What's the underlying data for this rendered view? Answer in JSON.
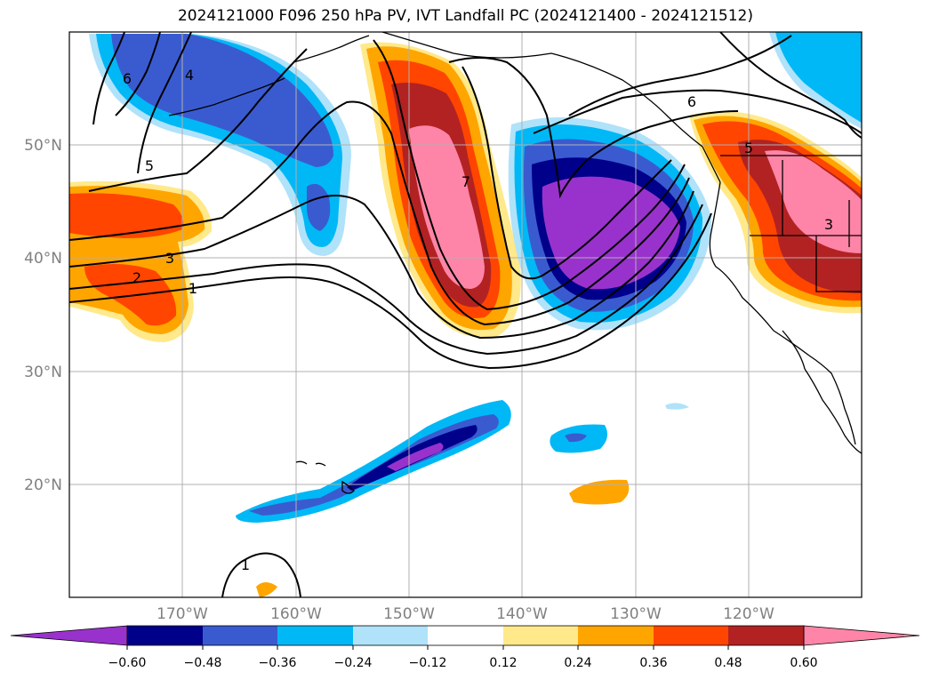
{
  "title": "2024121000 F096 250 hPa PV, IVT Landfall PC (2024121400 - 2024121512)",
  "map": {
    "lon_range": [
      -180,
      -110
    ],
    "lat_range": [
      10,
      60
    ],
    "lat_labels": [
      "50°N",
      "40°N",
      "30°N",
      "20°N"
    ],
    "lon_labels": [
      "170°W",
      "160°W",
      "150°W",
      "140°W",
      "130°W",
      "120°W"
    ],
    "grid": true,
    "contour_labels": [
      "6",
      "4",
      "5",
      "3",
      "2",
      "1",
      "7",
      "6",
      "5",
      "3",
      "1"
    ]
  },
  "colorbar": {
    "tick_labels": [
      "−0.60",
      "−0.48",
      "−0.36",
      "−0.24",
      "−0.12",
      "0.12",
      "0.24",
      "0.36",
      "0.48",
      "0.60"
    ],
    "colors": [
      "#9932cc",
      "#00008b",
      "#3a5bd0",
      "#00b8f5",
      "#b0e2fa",
      "#ffffff",
      "#ffe98a",
      "#ffa500",
      "#ff4500",
      "#b22222",
      "#ff85a8"
    ],
    "extend": "both"
  }
}
